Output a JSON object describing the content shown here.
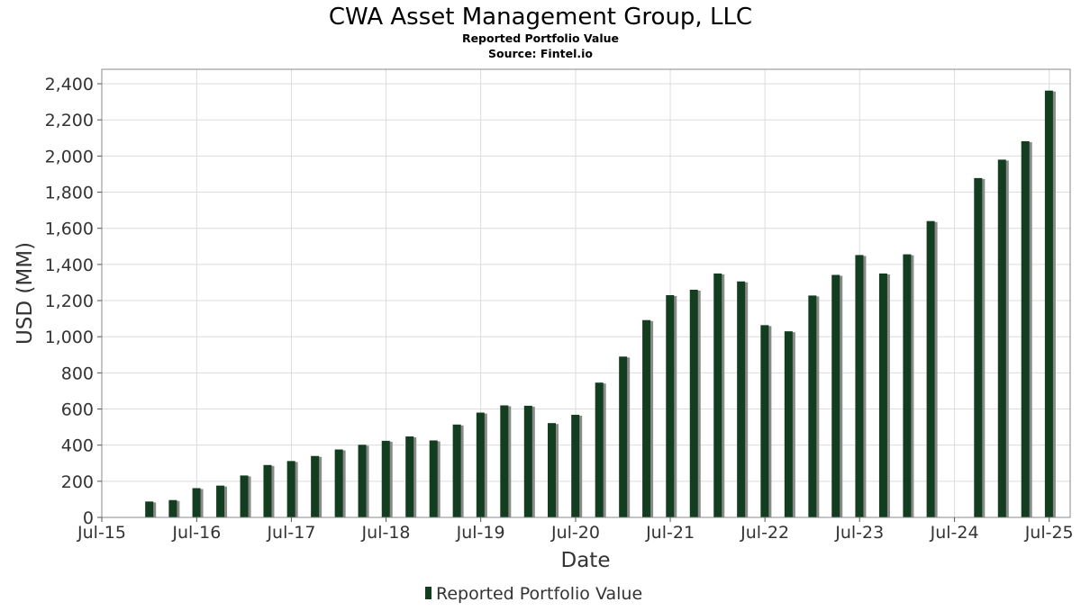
{
  "chart_data": {
    "type": "bar",
    "title": "CWA Asset Management Group, LLC",
    "subtitle": "Reported Portfolio Value",
    "source": "Source: Fintel.io",
    "xlabel": "Date",
    "ylabel": "USD (MM)",
    "ylim": [
      0,
      2480
    ],
    "yticks": [
      0,
      200,
      400,
      600,
      800,
      1000,
      1200,
      1400,
      1600,
      1800,
      2000,
      2200,
      2400
    ],
    "ytick_labels": [
      "0",
      "200",
      "400",
      "600",
      "800",
      "1,000",
      "1,200",
      "1,400",
      "1,600",
      "1,800",
      "2,000",
      "2,200",
      "2,400"
    ],
    "xlim": [
      "2015-07-01",
      "2025-09-20"
    ],
    "xticks": [
      "2015-07-01",
      "2016-07-01",
      "2017-07-01",
      "2018-07-01",
      "2019-07-01",
      "2020-07-01",
      "2021-07-01",
      "2022-07-01",
      "2023-07-01",
      "2024-07-01",
      "2025-07-01"
    ],
    "xtick_labels": [
      "Jul-15",
      "Jul-16",
      "Jul-17",
      "Jul-18",
      "Jul-19",
      "Jul-20",
      "Jul-21",
      "Jul-22",
      "Jul-23",
      "Jul-24",
      "Jul-25"
    ],
    "grid": true,
    "legend_position": "bottom-center",
    "colors": {
      "bar": "#123d1f",
      "bar_shadow": "#8a8a8a",
      "grid": "#dcdcdc",
      "frame": "#888888"
    },
    "series": [
      {
        "name": "Reported Portfolio Value",
        "x": [
          "2015-12-31",
          "2016-03-31",
          "2016-06-30",
          "2016-09-30",
          "2016-12-31",
          "2017-03-31",
          "2017-06-30",
          "2017-09-30",
          "2017-12-31",
          "2018-03-31",
          "2018-06-30",
          "2018-09-30",
          "2018-12-31",
          "2019-03-31",
          "2019-06-30",
          "2019-09-30",
          "2019-12-31",
          "2020-03-31",
          "2020-06-30",
          "2020-09-30",
          "2020-12-31",
          "2021-03-31",
          "2021-06-30",
          "2021-09-30",
          "2021-12-31",
          "2022-03-31",
          "2022-06-30",
          "2022-09-30",
          "2022-12-31",
          "2023-03-31",
          "2023-06-30",
          "2023-09-30",
          "2023-12-31",
          "2024-03-31",
          "2024-09-30",
          "2024-12-31",
          "2025-03-31",
          "2025-06-30"
        ],
        "values": [
          88,
          96,
          162,
          176,
          232,
          290,
          312,
          340,
          376,
          402,
          424,
          448,
          426,
          514,
          580,
          620,
          618,
          522,
          568,
          746,
          890,
          1092,
          1230,
          1260,
          1350,
          1306,
          1064,
          1030,
          1228,
          1342,
          1452,
          1350,
          1456,
          1640,
          1878,
          1980,
          2082,
          2362
        ]
      }
    ]
  }
}
